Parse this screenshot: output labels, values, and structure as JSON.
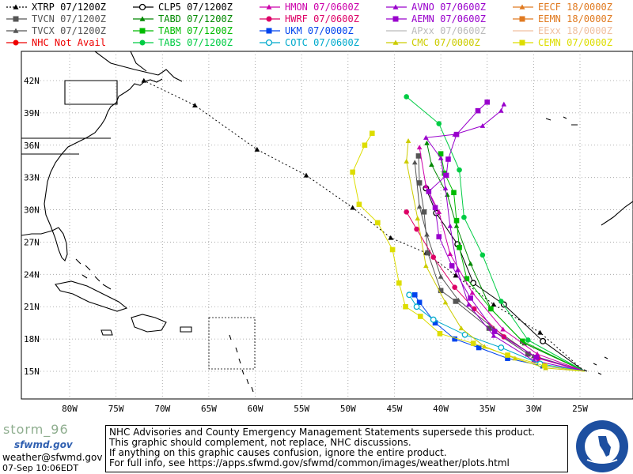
{
  "legend": [
    {
      "label": "XTRP 07/1200Z",
      "color": "#000000",
      "marker": "triangle",
      "dash": true
    },
    {
      "label": "CLP5 07/1200Z",
      "color": "#000000",
      "marker": "ring"
    },
    {
      "label": "HMON 07/0600Z",
      "color": "#cc00aa",
      "marker": "triangle"
    },
    {
      "label": "AVNO 07/0600Z",
      "color": "#9900cc",
      "marker": "triangle"
    },
    {
      "label": "EECF 18/0000Z",
      "color": "#e07a20",
      "marker": "triangle"
    },
    {
      "label": "TVCN 07/1200Z",
      "color": "#555555",
      "marker": "square"
    },
    {
      "label": "TABD 07/1200Z",
      "color": "#008800",
      "marker": "triangle"
    },
    {
      "label": "HWRF 07/0600Z",
      "color": "#dd0066",
      "marker": "circle"
    },
    {
      "label": "AEMN 07/0600Z",
      "color": "#9900cc",
      "marker": "square"
    },
    {
      "label": "EEMN 18/0000Z",
      "color": "#e07a20",
      "marker": "square"
    },
    {
      "label": "TVCX 07/1200Z",
      "color": "#555555",
      "marker": "triangle"
    },
    {
      "label": "TABM 07/1200Z",
      "color": "#00bb00",
      "marker": "square"
    },
    {
      "label": "UKM 07/0000Z",
      "color": "#0044ee",
      "marker": "square"
    },
    {
      "label": "APxx 07/0600Z",
      "color": "#bbbbbb",
      "marker": "none"
    },
    {
      "label": "EExx 18/0000Z",
      "color": "#f0c0a0",
      "marker": "none"
    },
    {
      "label": "NHC Not Avail",
      "color": "#ee0000",
      "marker": "circle"
    },
    {
      "label": "TABS 07/1200Z",
      "color": "#00cc44",
      "marker": "circle"
    },
    {
      "label": "COTC 07/0600Z",
      "color": "#00aacc",
      "marker": "ring"
    },
    {
      "label": "CMC 07/0000Z",
      "color": "#cccc00",
      "marker": "triangle"
    },
    {
      "label": "CEMN 07/0000Z",
      "color": "#dddd00",
      "marker": "square"
    }
  ],
  "map": {
    "lat_labels": [
      "42N",
      "39N",
      "36N",
      "33N",
      "30N",
      "27N",
      "24N",
      "21N",
      "18N",
      "15N"
    ],
    "lon_labels": [
      "80W",
      "75W",
      "70W",
      "65W",
      "60W",
      "55W",
      "50W",
      "45W",
      "40W",
      "35W",
      "30W",
      "25W"
    ],
    "lat_values": [
      42,
      39,
      36,
      33,
      30,
      27,
      24,
      21,
      18,
      15
    ],
    "lon_values": [
      -80,
      -75,
      -70,
      -65,
      -60,
      -55,
      -50,
      -45,
      -40,
      -35,
      -30,
      -25
    ]
  },
  "tracks": [
    {
      "model": "XTRP",
      "color": "#000000",
      "marker": "triangle",
      "dash": true,
      "points": [
        [
          -24.5,
          15.0
        ],
        [
          -29.3,
          18.6
        ],
        [
          -34.3,
          21.2
        ],
        [
          -38.4,
          23.9
        ],
        [
          -41.6,
          26.0
        ],
        [
          -45.4,
          27.4
        ],
        [
          -49.5,
          30.2
        ],
        [
          -54.5,
          33.2
        ],
        [
          -59.8,
          35.6
        ],
        [
          -66.5,
          39.7
        ],
        [
          -72.0,
          42.0
        ]
      ]
    },
    {
      "model": "CLP5",
      "color": "#000000",
      "marker": "ring",
      "points": [
        [
          -24.5,
          15.0
        ],
        [
          -29.0,
          17.8
        ],
        [
          -33.2,
          21.2
        ],
        [
          -36.5,
          23.2
        ],
        [
          -38.2,
          26.8
        ],
        [
          -40.5,
          29.7
        ],
        [
          -41.6,
          32.0
        ]
      ]
    },
    {
      "model": "TVCN",
      "color": "#555555",
      "marker": "square",
      "points": [
        [
          -24.5,
          15.0
        ],
        [
          -30.6,
          16.6
        ],
        [
          -34.8,
          19.0
        ],
        [
          -38.4,
          21.5
        ],
        [
          -40.0,
          22.5
        ],
        [
          -41.4,
          26.0
        ],
        [
          -41.8,
          29.8
        ],
        [
          -42.3,
          32.5
        ],
        [
          -42.4,
          35.0
        ]
      ]
    },
    {
      "model": "TVCX",
      "color": "#555555",
      "marker": "triangle",
      "points": [
        [
          -24.5,
          15.0
        ],
        [
          -30.0,
          16.4
        ],
        [
          -34.3,
          19.0
        ],
        [
          -38.1,
          21.6
        ],
        [
          -40.0,
          23.8
        ],
        [
          -41.5,
          27.7
        ],
        [
          -42.3,
          30.3
        ],
        [
          -42.8,
          34.4
        ]
      ]
    },
    {
      "model": "TABD",
      "color": "#008800",
      "marker": "triangle",
      "points": [
        [
          -24.5,
          15.0
        ],
        [
          -31.0,
          17.6
        ],
        [
          -34.6,
          20.8
        ],
        [
          -36.8,
          25.0
        ],
        [
          -38.3,
          28.5
        ],
        [
          -39.3,
          31.4
        ],
        [
          -41.0,
          34.2
        ],
        [
          -41.5,
          36.2
        ]
      ]
    },
    {
      "model": "TABM",
      "color": "#00bb00",
      "marker": "square",
      "points": [
        [
          -24.5,
          15.0
        ],
        [
          -31.2,
          17.8
        ],
        [
          -34.6,
          20.8
        ],
        [
          -37.2,
          23.6
        ],
        [
          -38.0,
          26.5
        ],
        [
          -38.3,
          29.0
        ],
        [
          -38.6,
          31.6
        ],
        [
          -39.6,
          33.4
        ],
        [
          -40.0,
          35.2
        ]
      ]
    },
    {
      "model": "TABS",
      "color": "#00cc44",
      "marker": "circle",
      "points": [
        [
          -24.5,
          15.0
        ],
        [
          -30.6,
          17.9
        ],
        [
          -33.5,
          21.5
        ],
        [
          -35.5,
          25.8
        ],
        [
          -37.5,
          29.3
        ],
        [
          -38.0,
          33.7
        ],
        [
          -40.2,
          38.0
        ],
        [
          -43.7,
          40.5
        ]
      ]
    },
    {
      "model": "HMON",
      "color": "#cc00aa",
      "marker": "triangle",
      "points": [
        [
          -24.5,
          15.0
        ],
        [
          -29.6,
          16.6
        ],
        [
          -33.3,
          18.9
        ],
        [
          -36.6,
          22.3
        ],
        [
          -39.0,
          25.9
        ],
        [
          -40.2,
          29.8
        ],
        [
          -41.6,
          32.2
        ],
        [
          -42.3,
          35.8
        ]
      ]
    },
    {
      "model": "HWRF",
      "color": "#dd0066",
      "marker": "circle",
      "points": [
        [
          -24.5,
          15.0
        ],
        [
          -29.5,
          16.2
        ],
        [
          -33.2,
          18.2
        ],
        [
          -36.4,
          20.8
        ],
        [
          -38.5,
          22.8
        ],
        [
          -40.8,
          25.6
        ],
        [
          -42.6,
          28.2
        ],
        [
          -43.7,
          29.8
        ]
      ]
    },
    {
      "model": "AVNO",
      "color": "#9900cc",
      "marker": "triangle",
      "points": [
        [
          -24.5,
          15.0
        ],
        [
          -30.0,
          16.0
        ],
        [
          -34.3,
          18.3
        ],
        [
          -37.0,
          21.2
        ],
        [
          -38.2,
          24.4
        ],
        [
          -39.0,
          28.5
        ],
        [
          -39.5,
          32.0
        ],
        [
          -40.0,
          34.8
        ],
        [
          -41.6,
          36.7
        ],
        [
          -38.5,
          37.0
        ],
        [
          -35.5,
          37.8
        ],
        [
          -33.5,
          39.2
        ],
        [
          -33.2,
          39.8
        ]
      ]
    },
    {
      "model": "AEMN",
      "color": "#9900cc",
      "marker": "square",
      "points": [
        [
          -24.5,
          15.0
        ],
        [
          -29.7,
          16.3
        ],
        [
          -34.2,
          18.7
        ],
        [
          -36.8,
          21.8
        ],
        [
          -38.8,
          24.8
        ],
        [
          -40.2,
          27.5
        ],
        [
          -40.6,
          30.2
        ],
        [
          -41.3,
          31.7
        ],
        [
          -39.4,
          33.2
        ],
        [
          -39.2,
          34.7
        ],
        [
          -38.3,
          37.0
        ],
        [
          -36.0,
          39.2
        ],
        [
          -35.0,
          40.0
        ]
      ]
    },
    {
      "model": "UKM",
      "color": "#0044ee",
      "marker": "square",
      "points": [
        [
          -24.5,
          15.0
        ],
        [
          -29.0,
          15.5
        ],
        [
          -32.8,
          16.2
        ],
        [
          -35.9,
          17.2
        ],
        [
          -38.5,
          18.0
        ],
        [
          -40.6,
          19.5
        ],
        [
          -42.3,
          21.4
        ],
        [
          -42.8,
          22.1
        ]
      ]
    },
    {
      "model": "COTC",
      "color": "#00aacc",
      "marker": "ring",
      "points": [
        [
          -24.5,
          15.0
        ],
        [
          -29.3,
          15.7
        ],
        [
          -33.5,
          17.2
        ],
        [
          -37.4,
          18.4
        ],
        [
          -40.8,
          19.8
        ],
        [
          -42.6,
          21.0
        ],
        [
          -43.4,
          22.1
        ]
      ]
    },
    {
      "model": "CMC",
      "color": "#cccc00",
      "marker": "triangle",
      "points": [
        [
          -24.5,
          15.0
        ],
        [
          -28.7,
          15.3
        ],
        [
          -32.0,
          16.2
        ],
        [
          -35.3,
          17.3
        ],
        [
          -37.8,
          19.0
        ],
        [
          -39.5,
          21.4
        ],
        [
          -41.6,
          24.8
        ],
        [
          -42.5,
          29.2
        ],
        [
          -43.7,
          34.5
        ],
        [
          -43.5,
          36.4
        ]
      ]
    },
    {
      "model": "CEMN",
      "color": "#dddd00",
      "marker": "square",
      "points": [
        [
          -24.5,
          15.0
        ],
        [
          -28.8,
          15.5
        ],
        [
          -32.8,
          16.5
        ],
        [
          -36.5,
          17.6
        ],
        [
          -40.1,
          18.5
        ],
        [
          -42.2,
          20.1
        ],
        [
          -43.8,
          21.0
        ],
        [
          -44.5,
          23.2
        ],
        [
          -45.2,
          26.3
        ],
        [
          -46.8,
          28.8
        ],
        [
          -48.8,
          30.5
        ],
        [
          -49.5,
          33.5
        ],
        [
          -48.2,
          36.0
        ],
        [
          -47.4,
          37.1
        ]
      ]
    }
  ],
  "branding": {
    "logo_text": "storm_96",
    "sfwmd_text": "sfwmd.gov",
    "contact": "weather@sfwmd.gov",
    "timestamp": "07-Sep 10:06EDT"
  },
  "disclaimer": [
    "NHC Advisories and County Emergency Management Statements supersede this product.",
    "This graphic should complement, not replace, NHC discussions.",
    "If anything on this graphic causes confusion, ignore the entire product.",
    "For full info, see   https://apps.sfwmd.gov/sfwmd/common/images/weather/plots.html"
  ],
  "colors": {
    "land": "#000000",
    "grid": "#9a9a9a",
    "frame": "#000000",
    "seal_blue": "#1d4fa0"
  }
}
